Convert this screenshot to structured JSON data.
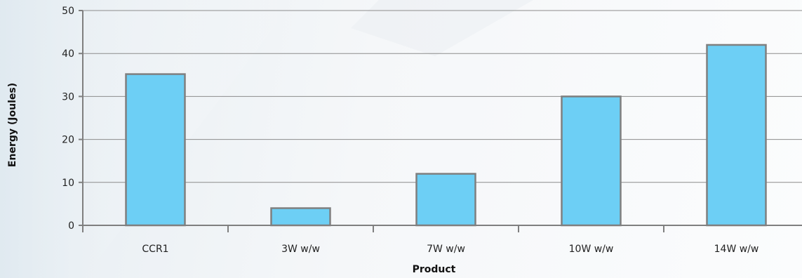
{
  "chart_data": {
    "type": "bar",
    "categories": [
      "CCR1",
      "3W w/w",
      "7W w/w",
      "10W w/w",
      "14W w/w"
    ],
    "values": [
      35.2,
      4,
      12,
      30,
      42
    ],
    "xlabel": "Product",
    "ylabel": "Energy  (Joules)",
    "ylim": [
      0,
      50
    ],
    "yticks": [
      0,
      10,
      20,
      30,
      40,
      50
    ],
    "grid": true,
    "colors": {
      "bar_fill": "#6dcff5",
      "bar_stroke": "#7f7f7f",
      "grid": "#8c8c8c",
      "axis": "#7f7f7f"
    }
  }
}
